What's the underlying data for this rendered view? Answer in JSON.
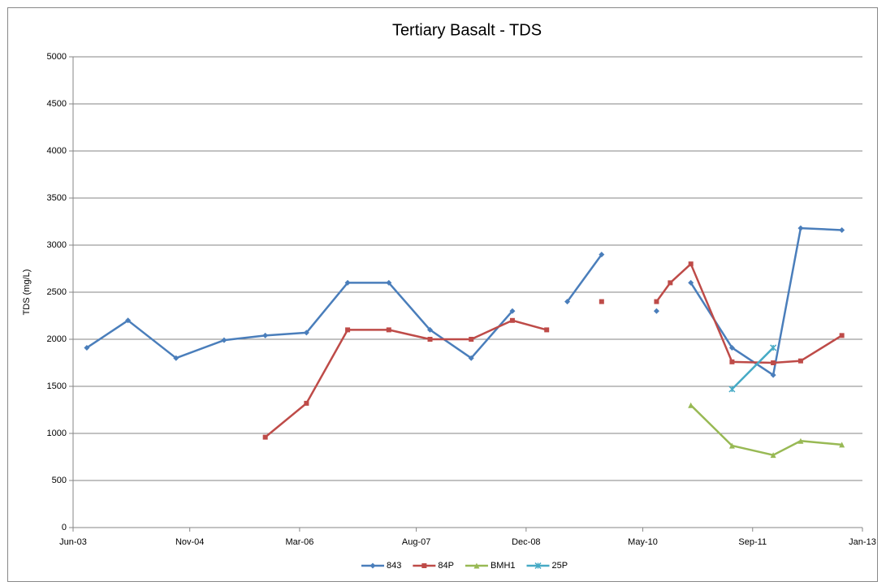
{
  "chart_data": {
    "type": "line",
    "title": "Tertiary Basalt - TDS",
    "y_label": "TDS (mg/L)",
    "x": [
      "2003-08",
      "2004-02",
      "2004-09",
      "2005-04",
      "2005-10",
      "2006-04",
      "2006-10",
      "2007-04",
      "2007-10",
      "2008-04",
      "2008-10",
      "2009-03",
      "2009-06",
      "2009-11",
      "2010-03",
      "2010-07",
      "2010-09",
      "2010-12",
      "2011-06",
      "2011-12",
      "2012-04",
      "2012-10"
    ],
    "series": [
      {
        "name": "843",
        "color": "#4a7ebb",
        "marker": "diamond",
        "values": [
          1910,
          2200,
          1800,
          1990,
          2040,
          2070,
          2600,
          2600,
          2100,
          1800,
          2300,
          null,
          2400,
          2900,
          null,
          2300,
          null,
          2600,
          1910,
          1620,
          3180,
          3160
        ]
      },
      {
        "name": "84P",
        "color": "#be4b48",
        "marker": "square",
        "values": [
          null,
          null,
          null,
          null,
          960,
          1320,
          2100,
          2100,
          2000,
          2000,
          2200,
          2100,
          null,
          2400,
          null,
          2400,
          2600,
          2800,
          1760,
          1750,
          1770,
          2040
        ]
      },
      {
        "name": "BMH1",
        "color": "#98b954",
        "marker": "triangle",
        "values": [
          null,
          null,
          null,
          null,
          null,
          null,
          null,
          null,
          null,
          null,
          null,
          null,
          null,
          null,
          null,
          null,
          null,
          1300,
          870,
          770,
          920,
          880
        ]
      },
      {
        "name": "25P",
        "color": "#46aac5",
        "marker": "star",
        "values": [
          null,
          null,
          null,
          null,
          null,
          null,
          null,
          null,
          null,
          null,
          null,
          null,
          null,
          null,
          null,
          null,
          null,
          null,
          1470,
          1910,
          null,
          null
        ]
      }
    ],
    "xlim": [
      "2003-06",
      "2013-01"
    ],
    "xticks": [
      {
        "value": "2003-06",
        "label": "Jun-03"
      },
      {
        "value": "2004-11",
        "label": "Nov-04"
      },
      {
        "value": "2006-03",
        "label": "Mar-06"
      },
      {
        "value": "2007-08",
        "label": "Aug-07"
      },
      {
        "value": "2008-12",
        "label": "Dec-08"
      },
      {
        "value": "2010-05",
        "label": "May-10"
      },
      {
        "value": "2011-09",
        "label": "Sep-11"
      },
      {
        "value": "2013-01",
        "label": "Jan-13"
      }
    ],
    "ylim": [
      0,
      5000
    ],
    "yticks": [
      0,
      500,
      1000,
      1500,
      2000,
      2500,
      3000,
      3500,
      4000,
      4500,
      5000
    ],
    "grid": true,
    "legend": "bottom"
  }
}
